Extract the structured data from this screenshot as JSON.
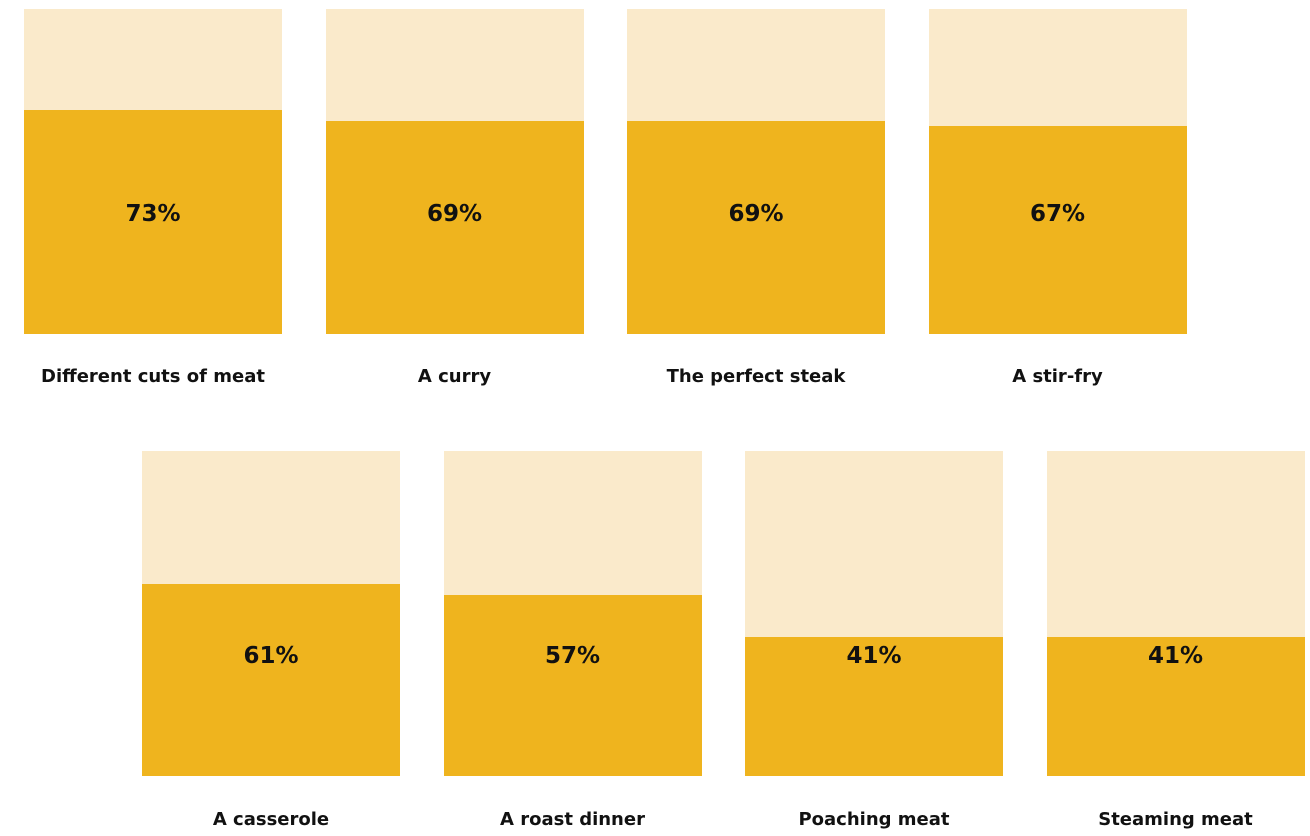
{
  "chart_data": {
    "type": "bar",
    "title": "",
    "categories": [
      "Different cuts of meat",
      "A curry",
      "The perfect steak",
      "A stir-fry",
      "A casserole",
      "A roast dinner",
      "Poaching meat",
      "Steaming meat"
    ],
    "values": [
      73,
      69,
      69,
      67,
      61,
      57,
      41,
      41
    ],
    "value_labels": [
      "73%",
      "69%",
      "69%",
      "67%",
      "61%",
      "57%",
      "41%",
      "41%"
    ],
    "unit": "%",
    "ylim": [
      0,
      100
    ],
    "grid": false,
    "legend": "none",
    "colors": {
      "fill": "#EFB41E",
      "background": "#FAEACB",
      "text": "#111111"
    }
  }
}
